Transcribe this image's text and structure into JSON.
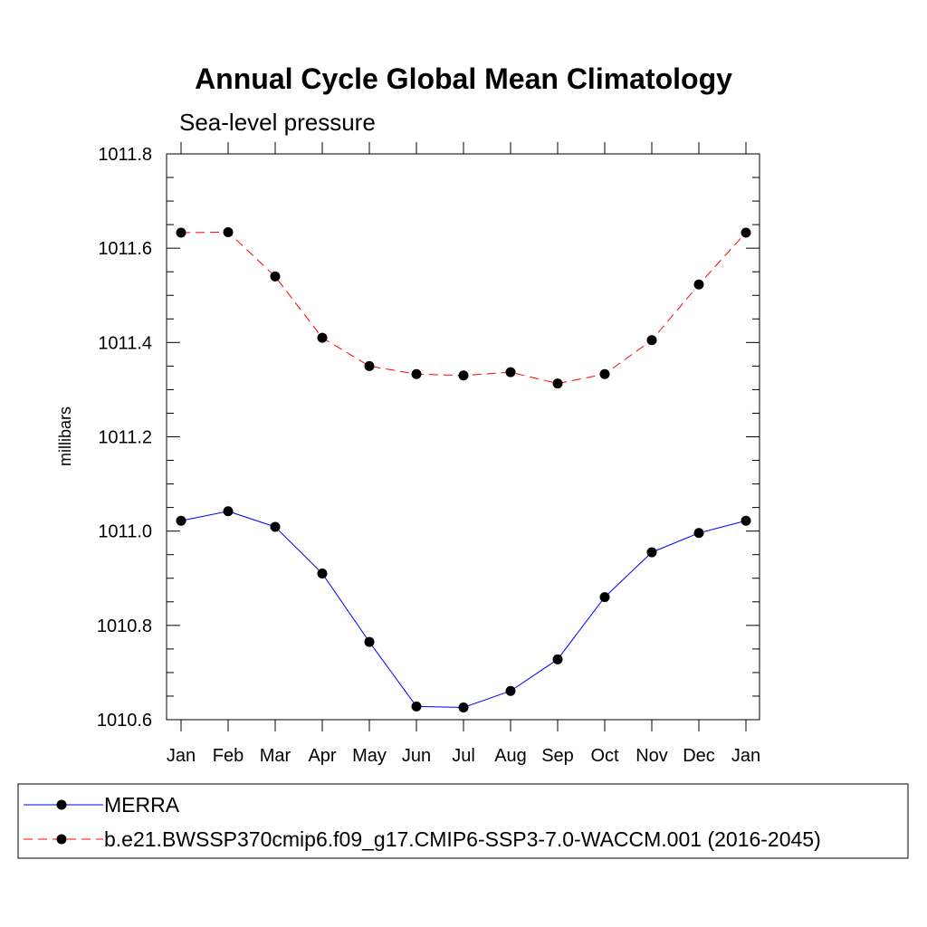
{
  "chart_data": {
    "type": "line",
    "title": "Annual Cycle Global Mean Climatology",
    "subtitle": "Sea-level pressure",
    "xlabel": "",
    "ylabel": "millibars",
    "categories": [
      "Jan",
      "Feb",
      "Mar",
      "Apr",
      "May",
      "Jun",
      "Jul",
      "Aug",
      "Sep",
      "Oct",
      "Nov",
      "Dec",
      "Jan"
    ],
    "ylim": [
      1010.6,
      1011.8
    ],
    "yticks": [
      "1010.6",
      "1010.8",
      "1011.0",
      "1011.2",
      "1011.4",
      "1011.6",
      "1011.8"
    ],
    "grid": false,
    "legend_position": "bottom",
    "series": [
      {
        "name": "MERRA",
        "values": [
          1011.022,
          1011.042,
          1011.009,
          1010.91,
          1010.765,
          1010.628,
          1010.626,
          1010.661,
          1010.728,
          1010.86,
          1010.955,
          1010.996,
          1011.022
        ],
        "color": "#0000ff",
        "line_style": "solid",
        "marker": "circle"
      },
      {
        "name": "b.e21.BWSSP370cmip6.f09_g17.CMIP6-SSP3-7.0-WACCM.001 (2016-2045)",
        "values": [
          1011.633,
          1011.634,
          1011.54,
          1011.41,
          1011.35,
          1011.333,
          1011.33,
          1011.337,
          1011.313,
          1011.333,
          1011.405,
          1011.523,
          1011.633
        ],
        "color": "#ff0000",
        "line_style": "dashed",
        "marker": "circle"
      }
    ]
  }
}
